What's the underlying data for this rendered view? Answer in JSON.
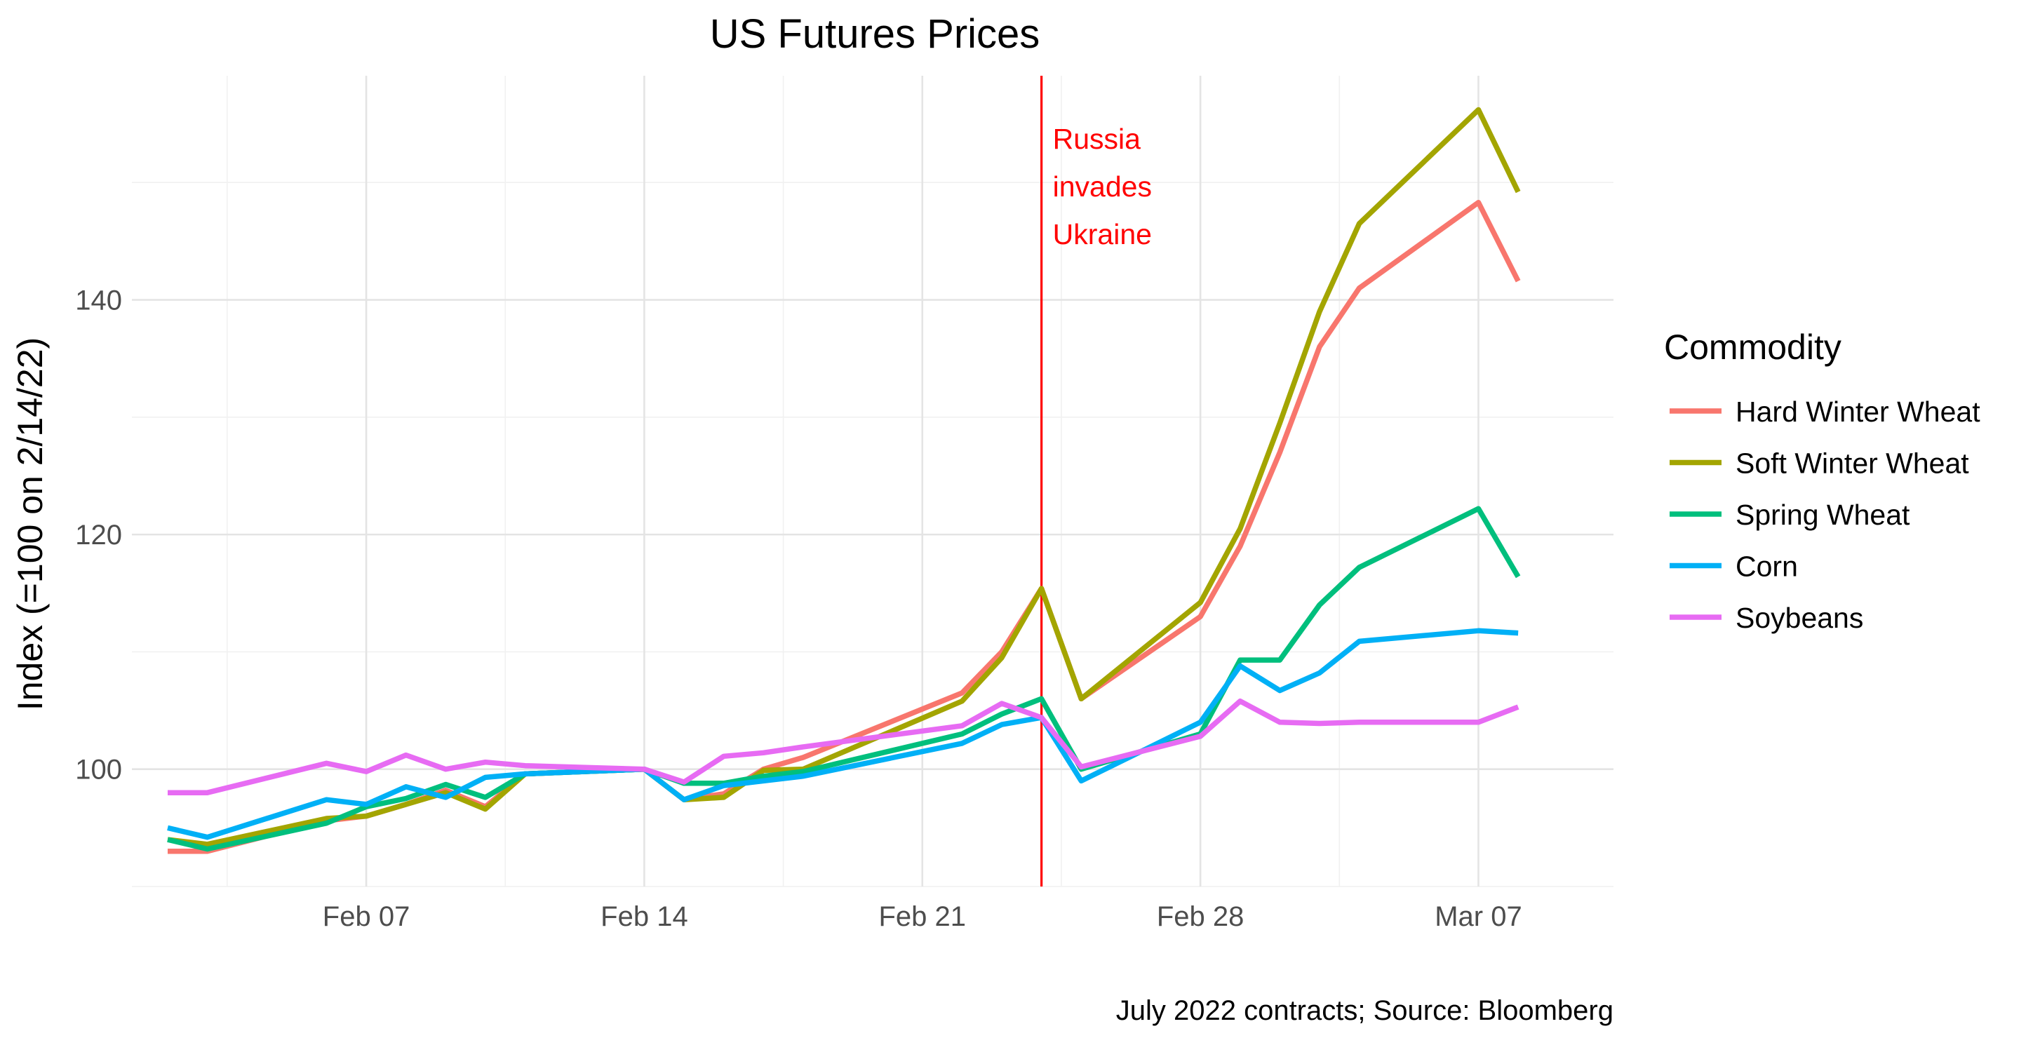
{
  "chart_data": {
    "type": "line",
    "title": "US Futures Prices",
    "xlabel": "",
    "ylabel": "Index (=100 on 2/14/22)",
    "caption": "July 2022 contracts; Source: Bloomberg",
    "x_tick_labels": [
      "Feb 07",
      "Feb 14",
      "Feb 21",
      "Feb 28",
      "Mar 07"
    ],
    "x_tick_days": [
      7,
      14,
      21,
      28,
      35
    ],
    "x_range_days": [
      1.1,
      38.4
    ],
    "y_ticks": [
      100,
      120,
      140
    ],
    "ylim": [
      90,
      159.1
    ],
    "grid": true,
    "x": [
      2,
      3,
      6,
      7,
      8,
      9,
      10,
      11,
      14,
      15,
      16,
      17,
      18,
      22,
      23,
      24,
      25,
      28,
      29,
      30,
      31,
      32,
      35,
      36
    ],
    "series": [
      {
        "name": "Hard Winter Wheat",
        "color": "#F8766D",
        "values": [
          93.0,
          93.0,
          95.6,
          96.0,
          97.0,
          98.2,
          96.8,
          99.6,
          100.0,
          97.4,
          97.9,
          100.0,
          101.0,
          106.5,
          110.0,
          115.4,
          106.0,
          113.0,
          119.0,
          127.0,
          136.0,
          141.0,
          148.3,
          141.6
        ]
      },
      {
        "name": "Soft Winter Wheat",
        "color": "#A3A500",
        "values": [
          94.0,
          93.6,
          95.8,
          96.0,
          97.0,
          98.0,
          96.6,
          99.6,
          100.0,
          97.4,
          97.6,
          99.9,
          100.0,
          105.8,
          109.5,
          115.4,
          106.0,
          114.2,
          120.5,
          129.5,
          139.0,
          146.5,
          156.2,
          149.2
        ]
      },
      {
        "name": "Spring Wheat",
        "color": "#00BF7D",
        "values": [
          94.0,
          93.2,
          95.4,
          96.8,
          97.5,
          98.7,
          97.6,
          99.6,
          100.0,
          98.8,
          98.8,
          99.4,
          99.8,
          103.0,
          104.7,
          106.0,
          100.0,
          103.0,
          109.3,
          109.3,
          114.0,
          117.2,
          122.2,
          116.4
        ]
      },
      {
        "name": "Corn",
        "color": "#00B0F6",
        "values": [
          95.0,
          94.2,
          97.4,
          97.0,
          98.5,
          97.6,
          99.3,
          99.6,
          100.0,
          97.4,
          98.6,
          99.0,
          99.4,
          102.2,
          103.8,
          104.4,
          99.0,
          104.0,
          108.8,
          106.7,
          108.2,
          110.9,
          111.8,
          111.6
        ]
      },
      {
        "name": "Soybeans",
        "color": "#E76BF3",
        "values": [
          98.0,
          98.0,
          100.5,
          99.8,
          101.2,
          100.0,
          100.6,
          100.3,
          100.0,
          98.9,
          101.1,
          101.4,
          101.9,
          103.7,
          105.6,
          104.4,
          100.2,
          102.8,
          105.8,
          104.0,
          103.9,
          104.0,
          104.0,
          105.3
        ]
      }
    ],
    "event_line": {
      "day": 24,
      "color": "#FF0000",
      "label_lines": [
        "Russia",
        "invades",
        "Ukraine"
      ]
    },
    "legend": {
      "title": "Commodity",
      "position": "right"
    }
  }
}
